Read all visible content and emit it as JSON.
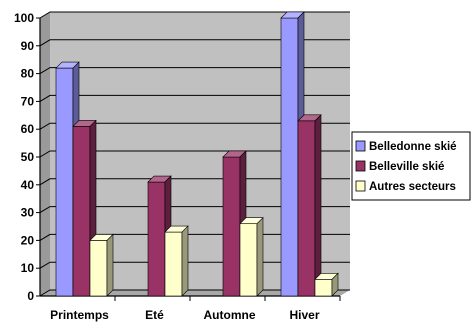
{
  "chart_data": {
    "type": "bar",
    "categories": [
      "Printemps",
      "Eté",
      "Automne",
      "Hiver"
    ],
    "series": [
      {
        "name": "Belledonne skié",
        "color": "#9999ff",
        "values": [
          82,
          0,
          0,
          100
        ]
      },
      {
        "name": "Belleville skié",
        "color": "#993366",
        "values": [
          61,
          41,
          50,
          63
        ]
      },
      {
        "name": "Autres secteurs",
        "color": "#ffffcc",
        "values": [
          20,
          23,
          26,
          6
        ]
      }
    ],
    "ylim": [
      0,
      100
    ],
    "yticks": [
      0,
      10,
      20,
      30,
      40,
      50,
      60,
      70,
      80,
      90,
      100
    ],
    "grid": true,
    "legend_position": "right",
    "wall_color": "#c0c0c0"
  }
}
